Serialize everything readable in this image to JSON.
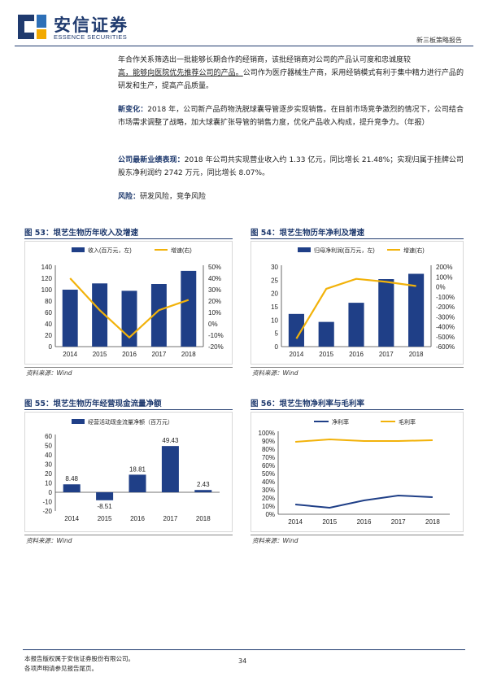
{
  "header": {
    "logo_cn": "安信证券",
    "logo_en": "ESSENCE SECURITIES",
    "report_type": "新三板策略报告"
  },
  "paragraphs": {
    "p1_line1": "年合作关系筛选出一批能够长期合作的经销商，该批经销商对公司的产品认可度和忠诚度较",
    "p1_line2": "高，能够向医院优先推荐公司的产品。",
    "p1_rest": "公司作为医疗器械生产商，采用经销模式有利于集中精力进行产品的研发和生产，提高产品质量。",
    "p2_lead": "新变化：",
    "p2_text": "2018 年，公司新产品药物洗脱球囊导管逐步实现销售。在目前市场竞争激烈的情况下，公司结合市场需求调整了战略，加大球囊扩张导管的销售力度，优化产品收入构成，提升竞争力。（年报）",
    "p3_lead": "公司最新业绩表现：",
    "p3_text": "2018 年公司共实现营业收入约 1.33 亿元，同比增长 21.48%；实现归属于挂牌公司股东净利润约 2742 万元，同比增长 8.07%。",
    "p4_lead": "风险：",
    "p4_text": "研发风险，竞争风险"
  },
  "figures": {
    "fig53_title": "图 53：垠艺生物历年收入及增速",
    "fig54_title": "图 54：垠艺生物历年净利及增速",
    "fig55_title": "图 55：垠艺生物历年经营现金流量净额",
    "fig56_title": "图 56：垠艺生物净利率与毛利率",
    "source": "资料来源：Wind"
  },
  "footer": {
    "line1": "本报告版权属于安信证券股份有限公司。",
    "line2": "各项声明请参见报告尾页。",
    "page": "34"
  },
  "colors": {
    "brand": "#1f3a6e",
    "bar": "#1f3f87",
    "line_gold": "#f2b20a",
    "line_navy": "#1f3f87"
  },
  "chart_data": [
    {
      "id": "fig53",
      "type": "bar",
      "categories": [
        "2014",
        "2015",
        "2016",
        "2017",
        "2018"
      ],
      "series": [
        {
          "name": "收入(百万元，左)",
          "type": "bar",
          "axis": "left",
          "values": [
            100,
            111,
            98,
            110,
            133
          ]
        },
        {
          "name": "增速(右)",
          "type": "line",
          "axis": "right",
          "values": [
            40,
            12,
            -12,
            12,
            21
          ]
        }
      ],
      "yleft": {
        "min": 0,
        "max": 140,
        "ticks": [
          "0",
          "20",
          "40",
          "60",
          "80",
          "100",
          "120",
          "140"
        ]
      },
      "yright": {
        "min": -20,
        "max": 50,
        "ticks": [
          "-20%",
          "-10%",
          "0%",
          "10%",
          "20%",
          "30%",
          "40%",
          "50%"
        ]
      },
      "legend": "top"
    },
    {
      "id": "fig54",
      "type": "bar",
      "categories": [
        "2014",
        "2015",
        "2016",
        "2017",
        "2018"
      ],
      "series": [
        {
          "name": "归母净利润(百万元，左)",
          "type": "bar",
          "axis": "left",
          "values": [
            12.3,
            9.3,
            16.5,
            25.4,
            27.4
          ]
        },
        {
          "name": "增速(右)",
          "type": "line",
          "axis": "right",
          "values": [
            -520,
            -20,
            80,
            50,
            8
          ]
        }
      ],
      "yleft": {
        "min": 0,
        "max": 30,
        "ticks": [
          "0",
          "5",
          "10",
          "15",
          "20",
          "25",
          "30"
        ]
      },
      "yright": {
        "min": -600,
        "max": 200,
        "ticks": [
          "-600%",
          "-500%",
          "-400%",
          "-300%",
          "-200%",
          "-100%",
          "0%",
          "100%",
          "200%"
        ]
      },
      "legend": "top"
    },
    {
      "id": "fig55",
      "type": "bar",
      "categories": [
        "2014",
        "2015",
        "2016",
        "2017",
        "2018"
      ],
      "series": [
        {
          "name": "经营活动现金流量净额（百万元）",
          "values": [
            8.48,
            -8.51,
            18.81,
            49.43,
            2.43
          ]
        }
      ],
      "data_labels": [
        "8.48",
        "-8.51",
        "18.81",
        "49.43",
        "2.43"
      ],
      "yleft": {
        "min": -20,
        "max": 60,
        "ticks": [
          "-20",
          "-10",
          "0",
          "10",
          "20",
          "30",
          "40",
          "50",
          "60"
        ]
      },
      "legend": "top"
    },
    {
      "id": "fig56",
      "type": "line",
      "categories": [
        "2014",
        "2015",
        "2016",
        "2017",
        "2018"
      ],
      "series": [
        {
          "name": "净利率",
          "values": [
            12,
            8,
            17,
            23,
            21
          ]
        },
        {
          "name": "毛利率",
          "values": [
            89,
            92,
            90,
            90,
            91
          ]
        }
      ],
      "yleft": {
        "min": 0,
        "max": 100,
        "ticks": [
          "0%",
          "10%",
          "20%",
          "30%",
          "40%",
          "50%",
          "60%",
          "70%",
          "80%",
          "90%",
          "100%"
        ]
      },
      "legend": "top"
    }
  ]
}
